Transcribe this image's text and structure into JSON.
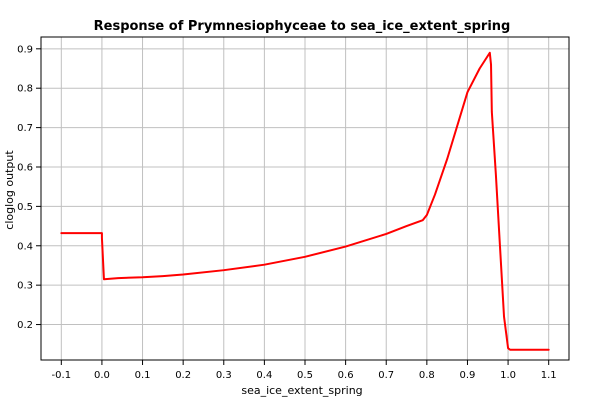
{
  "chart_data": {
    "type": "line",
    "title": "Response of Prymnesiophyceae to sea_ice_extent_spring",
    "xlabel": "sea_ice_extent_spring",
    "ylabel": "cloglog output",
    "xlim": [
      -0.15,
      1.15
    ],
    "ylim": [
      0.11,
      0.93
    ],
    "x_ticks": [
      -0.1,
      0.0,
      0.1,
      0.2,
      0.3,
      0.4,
      0.5,
      0.6,
      0.7,
      0.8,
      0.9,
      1.0,
      1.1
    ],
    "x_tick_labels": [
      "-0.1",
      "0.0",
      "0.1",
      "0.2",
      "0.3",
      "0.4",
      "0.5",
      "0.6",
      "0.7",
      "0.8",
      "0.9",
      "1.0",
      "1.1"
    ],
    "y_ticks": [
      0.2,
      0.3,
      0.4,
      0.5,
      0.6,
      0.7,
      0.8,
      0.9
    ],
    "y_tick_labels": [
      "0.2",
      "0.3",
      "0.4",
      "0.5",
      "0.6",
      "0.7",
      "0.8",
      "0.9"
    ],
    "grid": true,
    "series": [
      {
        "color": "#ff0000",
        "x": [
          -0.1,
          0.0,
          0.0,
          0.005,
          0.04,
          0.1,
          0.15,
          0.2,
          0.3,
          0.4,
          0.5,
          0.6,
          0.7,
          0.75,
          0.79,
          0.8,
          0.82,
          0.85,
          0.9,
          0.93,
          0.955,
          0.958,
          0.96,
          0.97,
          0.98,
          0.99,
          1.0,
          1.005,
          1.1
        ],
        "y": [
          0.432,
          0.432,
          0.42,
          0.315,
          0.318,
          0.32,
          0.323,
          0.327,
          0.338,
          0.352,
          0.372,
          0.398,
          0.43,
          0.45,
          0.465,
          0.478,
          0.53,
          0.62,
          0.79,
          0.85,
          0.89,
          0.86,
          0.74,
          0.58,
          0.4,
          0.22,
          0.14,
          0.136,
          0.136
        ]
      }
    ]
  }
}
